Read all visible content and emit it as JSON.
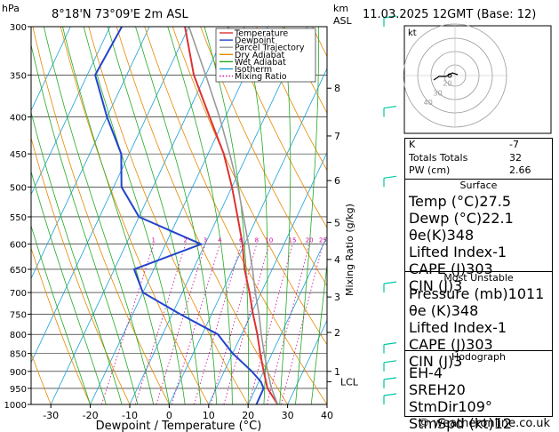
{
  "header": {
    "hpa_label": "hPa",
    "location": "8°18'N  73°09'E  2m  ASL",
    "km_label": "km",
    "asl_label": "ASL",
    "datetime": "11.03.2025  12GMT  (Base: 12)"
  },
  "legend": [
    "Temperature",
    "Dewpoint",
    "Parcel Trajectory",
    "Dry Adiabat",
    "Wet Adiabat",
    "Isotherm",
    "Mixing Ratio"
  ],
  "colors": {
    "temperature": "#dd3333",
    "dewpoint": "#2244cc",
    "parcel": "#999999",
    "dry_adiabat": "#e58a00",
    "wet_adiabat": "#22aa22",
    "isotherm": "#18a0d8",
    "mixing_ratio": "#cc0099",
    "wind_barb": "#00c8a0"
  },
  "chart_data": {
    "type": "line",
    "xlabel": "Dewpoint / Temperature (°C)",
    "ylabel_right": "Mixing Ratio (g/kg)",
    "xlim": [
      -35,
      40
    ],
    "pressure_ticks": [
      300,
      350,
      400,
      450,
      500,
      550,
      600,
      650,
      700,
      750,
      800,
      850,
      900,
      950,
      1000
    ],
    "temperature_ticks": [
      -30,
      -20,
      -10,
      0,
      10,
      20,
      30,
      40
    ],
    "km_ticks": [
      {
        "label": "8",
        "p": 365
      },
      {
        "label": "7",
        "p": 425
      },
      {
        "label": "6",
        "p": 490
      },
      {
        "label": "5",
        "p": 560
      },
      {
        "label": "4",
        "p": 630
      },
      {
        "label": "3",
        "p": 710
      },
      {
        "label": "2",
        "p": 795
      },
      {
        "label": "1",
        "p": 900
      },
      {
        "label": "LCL",
        "p": 930
      }
    ],
    "mixing_ratio_labels": [
      "1",
      "2",
      "3",
      "4",
      "6",
      "8",
      "10",
      "15",
      "20",
      "25"
    ],
    "series": [
      {
        "name": "Temperature",
        "pressure": [
          1000,
          950,
          900,
          850,
          800,
          750,
          700,
          650,
          600,
          550,
          500,
          450,
          400,
          350,
          300
        ],
        "values": [
          27.5,
          23.0,
          20.0,
          17.0,
          14.0,
          10.5,
          7.0,
          3.0,
          -0.5,
          -5.0,
          -10.0,
          -16.0,
          -24.0,
          -33.0,
          -41.0
        ]
      },
      {
        "name": "Dewpoint",
        "pressure": [
          1000,
          950,
          930,
          900,
          850,
          800,
          750,
          700,
          650,
          600,
          550,
          500,
          450,
          400,
          350,
          300
        ],
        "values": [
          22.1,
          22.0,
          20.5,
          17.0,
          10.0,
          4.0,
          -8.0,
          -20.0,
          -25.0,
          -11.0,
          -30.0,
          -38.0,
          -42.0,
          -50.0,
          -58.0,
          -57.0
        ]
      },
      {
        "name": "Parcel Trajectory",
        "pressure": [
          1000,
          950,
          900,
          850,
          800,
          750,
          700,
          650,
          600,
          550,
          500,
          450,
          400,
          350,
          300
        ],
        "values": [
          27.5,
          24.0,
          21.0,
          18.0,
          15.0,
          12.0,
          8.5,
          5.0,
          1.0,
          -3.5,
          -8.5,
          -14.5,
          -21.5,
          -30.0,
          -40.0
        ]
      }
    ]
  },
  "stats": {
    "k": {
      "label": "K",
      "value": "-7"
    },
    "totals": {
      "label": "Totals Totals",
      "value": "32"
    },
    "pw": {
      "label": "PW (cm)",
      "value": "2.66"
    }
  },
  "surface": {
    "title": "Surface",
    "rows": [
      {
        "label": "Temp (°C)",
        "value": "27.5"
      },
      {
        "label": "Dewp (°C)",
        "value": "22.1"
      },
      {
        "label": "θe(K)",
        "value": "348"
      },
      {
        "label": "Lifted Index",
        "value": "-1"
      },
      {
        "label": "CAPE (J)",
        "value": "303"
      },
      {
        "label": "CIN (J)",
        "value": "3"
      }
    ]
  },
  "most_unstable": {
    "title": "Most Unstable",
    "rows": [
      {
        "label": "Pressure (mb)",
        "value": "1011"
      },
      {
        "label": "θe (K)",
        "value": "348"
      },
      {
        "label": "Lifted Index",
        "value": "-1"
      },
      {
        "label": "CAPE (J)",
        "value": "303"
      },
      {
        "label": "CIN (J)",
        "value": "3"
      }
    ]
  },
  "hodograph": {
    "title": "Hodograph",
    "kt_label": "kt",
    "ring_labels": [
      "40",
      "30",
      "20"
    ],
    "rows": [
      {
        "label": "EH",
        "value": "-4"
      },
      {
        "label": "SREH",
        "value": "20"
      },
      {
        "label": "StmDir",
        "value": "109°"
      },
      {
        "label": "StmSpd (kt)",
        "value": "12"
      }
    ]
  },
  "copyright": "© weatheronline.co.uk"
}
